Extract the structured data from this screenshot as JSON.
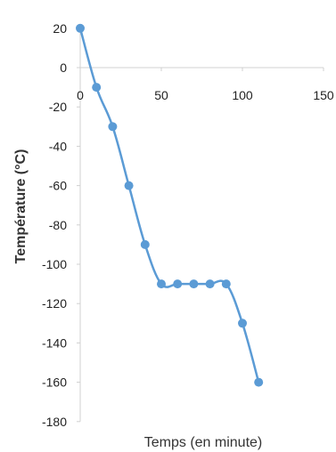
{
  "chart_data": {
    "type": "line",
    "xlabel": "Temps (en minute)",
    "ylabel": "Température (°C)",
    "xlim": [
      0,
      150
    ],
    "ylim": [
      -180,
      20
    ],
    "x_ticks": [
      0,
      50,
      100,
      150
    ],
    "y_ticks": [
      20,
      0,
      -20,
      -40,
      -60,
      -80,
      -100,
      -120,
      -140,
      -160,
      -180
    ],
    "grid": false,
    "series": [
      {
        "color": "#5b9bd5",
        "x": [
          0,
          10,
          20,
          30,
          40,
          50,
          60,
          70,
          80,
          90,
          100,
          110
        ],
        "y": [
          20,
          -10,
          -30,
          -60,
          -90,
          -110,
          -110,
          -110,
          -110,
          -110,
          -130,
          -160
        ]
      }
    ]
  }
}
